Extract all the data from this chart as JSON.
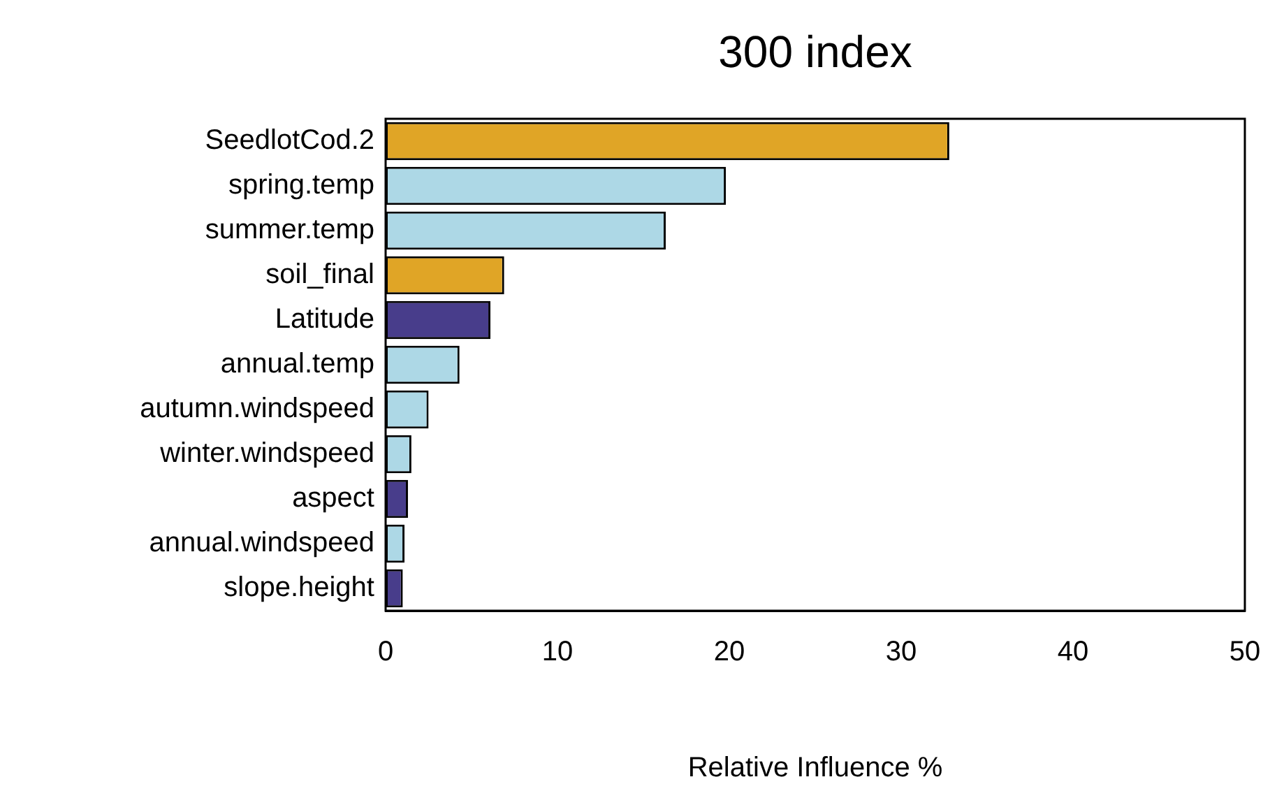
{
  "chart_data": {
    "type": "bar",
    "orientation": "horizontal",
    "title": "300 index",
    "xlabel": "Relative Influence %",
    "categories": [
      "SeedlotCod.2",
      "spring.temp",
      "summer.temp",
      "soil_final",
      "Latitude",
      "annual.temp",
      "autumn.windspeed",
      "winter.windspeed",
      "aspect",
      "annual.windspeed",
      "slope.height"
    ],
    "values": [
      32.8,
      19.8,
      16.3,
      6.9,
      6.1,
      4.3,
      2.5,
      1.5,
      1.3,
      1.1,
      1.0
    ],
    "colors": [
      "#e0a526",
      "#add8e6",
      "#add8e6",
      "#e0a526",
      "#483d8b",
      "#add8e6",
      "#add8e6",
      "#add8e6",
      "#483d8b",
      "#add8e6",
      "#483d8b"
    ],
    "xlim": [
      0,
      50
    ],
    "xticks": [
      0,
      10,
      20,
      30,
      40,
      50
    ],
    "grid": false,
    "legend": false
  }
}
